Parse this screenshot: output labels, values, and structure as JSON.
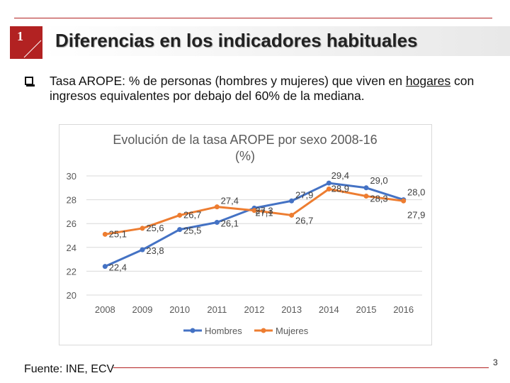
{
  "slide": {
    "number": "1",
    "title": "Diferencias en los indicadores habituales",
    "bullet_pre": "Tasa AROPE: % de personas (hombres y mujeres) que viven en ",
    "bullet_underlined": "hogares",
    "bullet_post": " con ingresos equivalentes por debajo del 60% de la mediana.",
    "source": "Fuente: INE, ECV",
    "page": "3"
  },
  "colors": {
    "accent_red": "#b22222",
    "hombres": "#4472c4",
    "mujeres": "#ed7d31"
  },
  "chart_data": {
    "type": "line",
    "title_line1": "Evolución de la tasa AROPE por sexo 2008-16",
    "title_line2": "(%)",
    "categories": [
      "2008",
      "2009",
      "2010",
      "2011",
      "2012",
      "2013",
      "2014",
      "2015",
      "2016"
    ],
    "ylim": [
      20,
      30
    ],
    "yticks": [
      "20",
      "22",
      "24",
      "26",
      "28",
      "30"
    ],
    "legend_position": "bottom",
    "series": [
      {
        "name": "Hombres",
        "values": [
          22.4,
          23.8,
          25.5,
          26.1,
          27.3,
          27.9,
          29.4,
          29.0,
          28.0
        ],
        "labels": [
          "22,4",
          "23,8",
          "25,5",
          "26,1",
          "27,3",
          "27,9",
          "29,4",
          "29,0",
          "28,0"
        ]
      },
      {
        "name": "Mujeres",
        "values": [
          25.1,
          25.6,
          26.7,
          27.4,
          27.1,
          26.7,
          28.9,
          28.3,
          27.9
        ],
        "labels": [
          "25,1",
          "25,6",
          "26,7",
          "27,4",
          "27,1",
          "26,7",
          "28,9",
          "28,3",
          "27,9"
        ]
      }
    ]
  }
}
